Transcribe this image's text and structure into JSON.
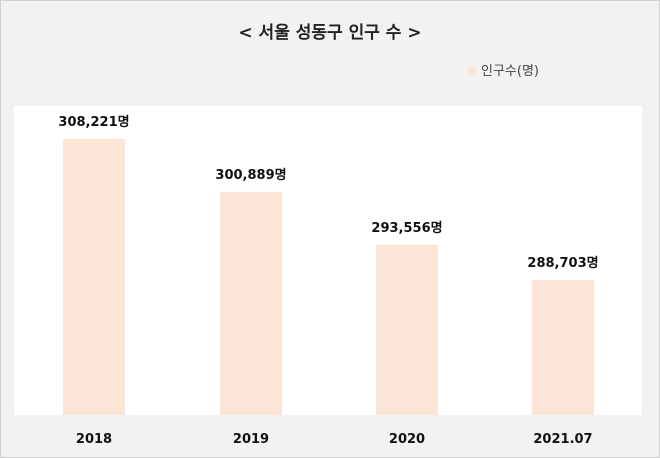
{
  "chart_data": {
    "type": "bar",
    "title": "< 서울 성동구 인구 수 >",
    "xlabel": "",
    "ylabel": "",
    "categories": [
      "2018",
      "2019",
      "2020",
      "2021.07"
    ],
    "series": [
      {
        "name": "인구수(명)",
        "values": [
          308221,
          300889,
          293556,
          288703
        ]
      }
    ],
    "data_labels": [
      "308,221명",
      "300,889명",
      "293,556명",
      "288,703명"
    ],
    "ylim": [
      270000,
      310000
    ],
    "grid": false,
    "legend_position": "top-right",
    "colors": {
      "bar": "#fbe5d6",
      "plot_background": "#ffffff",
      "outer_background": "#f2f2f2"
    }
  }
}
